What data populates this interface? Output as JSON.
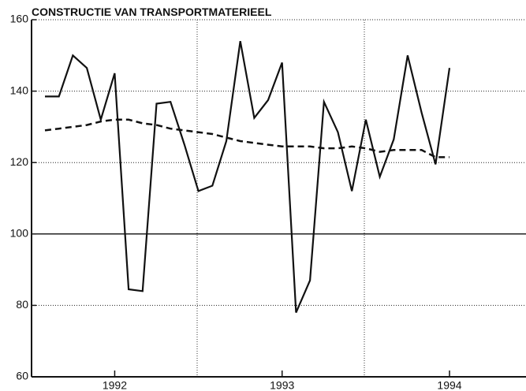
{
  "chart_data": {
    "type": "line",
    "title": "CONSTRUCTIE VAN TRANSPORTMATERIEEL",
    "categories": [
      null,
      null,
      null,
      null,
      null,
      "1992",
      null,
      null,
      null,
      null,
      null,
      null,
      null,
      null,
      null,
      null,
      null,
      "1993",
      null,
      null,
      null,
      null,
      null,
      null,
      null,
      null,
      null,
      null,
      null,
      "1994"
    ],
    "series": [
      {
        "color": "#111111",
        "style": "solid",
        "values": [
          138.5,
          138.5,
          150,
          146.5,
          132,
          145,
          84.5,
          84,
          136.5,
          137,
          125,
          112,
          113.5,
          126,
          154,
          132.5,
          137.5,
          148,
          78,
          87,
          137,
          128.5,
          112,
          132,
          116,
          126.5,
          150,
          134,
          119.5,
          146.5
        ]
      },
      {
        "color": "#111111",
        "style": "dashed",
        "values": [
          129,
          129.5,
          130,
          130.5,
          131.5,
          132,
          132,
          131,
          130.5,
          129.5,
          129,
          128.5,
          128,
          127,
          126,
          125.5,
          125,
          124.5,
          124.5,
          124.5,
          124,
          124,
          124.5,
          124,
          123,
          123.5,
          123.5,
          123.5,
          121.5,
          121.5
        ]
      }
    ],
    "ylim": [
      60,
      160
    ],
    "yticks": [
      60,
      80,
      100,
      120,
      140,
      160
    ],
    "grid": true
  }
}
